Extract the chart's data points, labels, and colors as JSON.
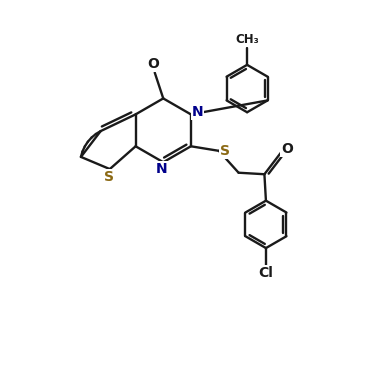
{
  "bg_color": "#ffffff",
  "line_color": "#1a1a1a",
  "s_color": "#8B6914",
  "n_color": "#00008B",
  "lw": 1.7,
  "figsize": [
    3.66,
    3.67
  ],
  "dpi": 100,
  "xlim": [
    -1,
    11
  ],
  "ylim": [
    -1,
    11
  ]
}
